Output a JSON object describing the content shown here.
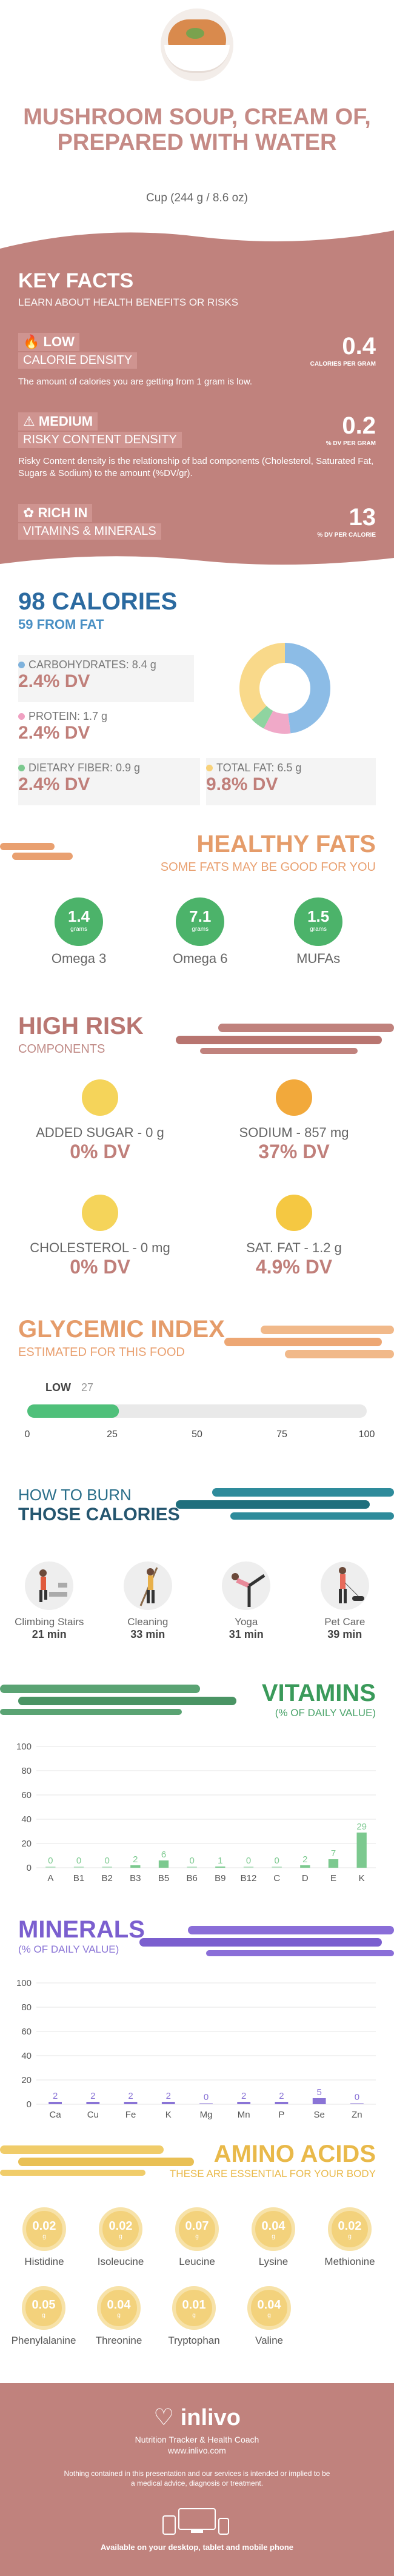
{
  "header": {
    "title": "MUSHROOM SOUP, CREAM OF, PREPARED WITH WATER",
    "serving": "Cup (244 g / 8.6 oz)"
  },
  "key_facts": {
    "title": "KEY FACTS",
    "subtitle": "LEARN ABOUT HEALTH BENEFITS OR RISKS",
    "items": [
      {
        "level": "LOW",
        "label": "CALORIE DENSITY",
        "value": "0.4",
        "unit": "CALORIES PER GRAM",
        "desc": "The amount of calories you are getting from 1 gram is low.",
        "icon": "flame-icon"
      },
      {
        "level": "MEDIUM",
        "label": "RISKY CONTENT DENSITY",
        "value": "0.2",
        "unit": "% DV PER GRAM",
        "desc": "Risky Content density is the relationship of bad components (Cholesterol, Saturated Fat, Sugars & Sodium) to the amount (%DV/gr).",
        "icon": "warning-icon"
      },
      {
        "level": "RICH IN",
        "label": "VITAMINS & MINERALS",
        "value": "13",
        "unit": "% DV PER CALORIE",
        "desc": "",
        "icon": "leaf-icon"
      }
    ]
  },
  "calories": {
    "title": "98 CALORIES",
    "from_fat": "59 FROM FAT",
    "nutrients": [
      {
        "label": "CARBOHYDRATES: 8.4 g",
        "dv": "2.4% DV",
        "color": "#7fb2dc"
      },
      {
        "label": "PROTEIN: 1.7 g",
        "dv": "2.4% DV",
        "color": "#f0a1c2"
      },
      {
        "label": "DIETARY FIBER: 0.9 g",
        "dv": "2.4% DV",
        "color": "#7cc98f"
      },
      {
        "label": "TOTAL FAT: 6.5 g",
        "dv": "9.8% DV",
        "color": "#f8d27a"
      }
    ],
    "donut": [
      {
        "value": 8.4,
        "color": "#8cbce6"
      },
      {
        "value": 1.7,
        "color": "#f0a9c8"
      },
      {
        "value": 0.9,
        "color": "#8fd4a0"
      },
      {
        "value": 6.5,
        "color": "#f9d98a"
      }
    ]
  },
  "healthy_fats": {
    "title": "HEALTHY FATS",
    "subtitle": "SOME FATS MAY BE GOOD FOR YOU",
    "items": [
      {
        "value": "1.4",
        "unit": "grams",
        "label": "Omega 3"
      },
      {
        "value": "7.1",
        "unit": "grams",
        "label": "Omega 6"
      },
      {
        "value": "1.5",
        "unit": "grams",
        "label": "MUFAs"
      }
    ]
  },
  "high_risk": {
    "title": "HIGH RISK",
    "subtitle": "COMPONENTS",
    "items": [
      {
        "label": "ADDED SUGAR - 0 g",
        "dv": "0% DV",
        "face": "grin-face-icon"
      },
      {
        "label": "SODIUM - 857 mg",
        "dv": "37% DV",
        "face": "smile-face-icon"
      },
      {
        "label": "CHOLESTEROL - 0 mg",
        "dv": "0% DV",
        "face": "grin-face-icon"
      },
      {
        "label": "SAT. FAT - 1.2 g",
        "dv": "4.9% DV",
        "face": "smile-face-icon"
      }
    ]
  },
  "glycemic": {
    "title": "GLYCEMIC INDEX",
    "subtitle": "ESTIMATED FOR THIS FOOD",
    "level": "LOW",
    "value": "27",
    "gi": 27,
    "ticks": [
      "0",
      "25",
      "50",
      "75",
      "100"
    ]
  },
  "burn": {
    "title1": "HOW TO BURN",
    "title2": "THOSE CALORIES",
    "items": [
      {
        "label": "Climbing Stairs",
        "time": "21 min"
      },
      {
        "label": "Cleaning",
        "time": "33 min"
      },
      {
        "label": "Yoga",
        "time": "31 min"
      },
      {
        "label": "Pet Care",
        "time": "39 min"
      }
    ]
  },
  "vitamins": {
    "title": "VITAMINS",
    "subtitle": "(% OF DAILY VALUE)",
    "chart_data": {
      "type": "bar",
      "categories": [
        "A",
        "B1",
        "B2",
        "B3",
        "B5",
        "B6",
        "B9",
        "B12",
        "C",
        "D",
        "E",
        "K"
      ],
      "values": [
        0,
        0,
        0,
        2,
        6,
        0,
        1,
        0,
        0,
        2,
        7,
        29
      ],
      "ylim": [
        0,
        100
      ],
      "yticks": [
        "0",
        "20",
        "40",
        "60",
        "80",
        "100"
      ],
      "color": "#7cc98f"
    }
  },
  "minerals": {
    "title": "MINERALS",
    "subtitle": "(% OF DAILY VALUE)",
    "chart_data": {
      "type": "bar",
      "categories": [
        "Ca",
        "Cu",
        "Fe",
        "K",
        "Mg",
        "Mn",
        "P",
        "Se",
        "Zn"
      ],
      "values": [
        2,
        2,
        2,
        2,
        0,
        2,
        2,
        5,
        0
      ],
      "ylim": [
        0,
        100
      ],
      "yticks": [
        "0",
        "20",
        "40",
        "60",
        "80",
        "100"
      ],
      "color": "#8a74d6"
    }
  },
  "amino": {
    "title": "AMINO ACIDS",
    "subtitle": "THESE ARE ESSENTIAL FOR YOUR BODY",
    "items": [
      {
        "value": "0.02",
        "unit": "g",
        "label": "Histidine"
      },
      {
        "value": "0.02",
        "unit": "g",
        "label": "Isoleucine"
      },
      {
        "value": "0.07",
        "unit": "g",
        "label": "Leucine"
      },
      {
        "value": "0.04",
        "unit": "g",
        "label": "Lysine"
      },
      {
        "value": "0.02",
        "unit": "g",
        "label": "Methionine"
      },
      {
        "value": "0.05",
        "unit": "g",
        "label": "Phenylalanine"
      },
      {
        "value": "0.04",
        "unit": "g",
        "label": "Threonine"
      },
      {
        "value": "0.01",
        "unit": "g",
        "label": "Tryptophan"
      },
      {
        "value": "0.04",
        "unit": "g",
        "label": "Valine"
      }
    ]
  },
  "footer": {
    "brand": "inlivo",
    "tagline": "Nutrition Tracker & Health Coach",
    "url": "www.inlivo.com",
    "disclaimer": "Nothing contained in this presentation and our services is intended or implied to be a medical advice, diagnosis or treatment.",
    "available": "Available on your desktop, tablet and mobile phone"
  }
}
